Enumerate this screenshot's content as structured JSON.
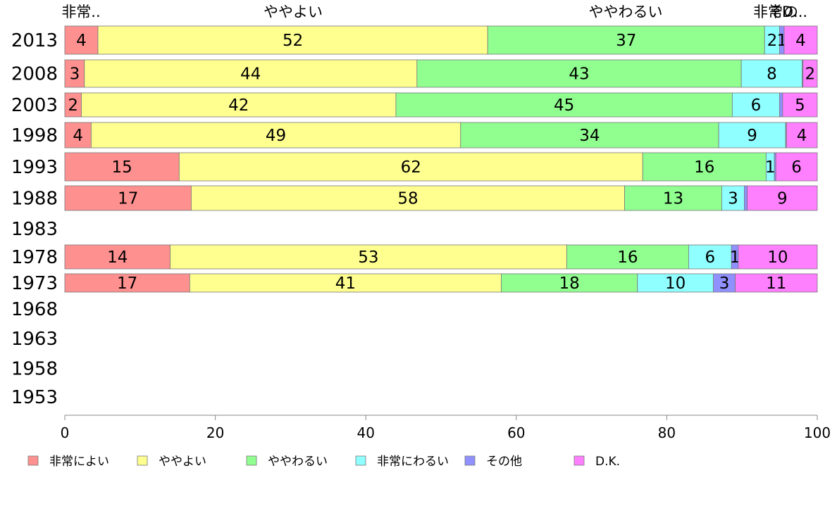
{
  "chart_data": {
    "type": "bar",
    "orientation": "horizontal",
    "stacked": true,
    "categories": [
      "2013",
      "2008",
      "2003",
      "1998",
      "1993",
      "1988",
      "1983",
      "1978",
      "1973",
      "1968",
      "1963",
      "1958",
      "1953"
    ],
    "series": [
      {
        "name": "非常によい",
        "color": "#ff9090",
        "values": [
          4.4,
          2.6,
          2.2,
          3.5,
          15.2,
          16.8,
          null,
          14.0,
          16.6,
          null,
          null,
          null,
          null
        ],
        "labels": [
          "4",
          "3",
          "2",
          "4",
          "15",
          "17",
          "",
          "14",
          "17",
          "",
          "",
          "",
          ""
        ]
      },
      {
        "name": "ややよい",
        "color": "#ffff90",
        "values": [
          51.8,
          44.2,
          41.8,
          49.1,
          61.6,
          57.6,
          null,
          52.7,
          41.4,
          null,
          null,
          null,
          null
        ],
        "labels": [
          "52",
          "44",
          "42",
          "49",
          "62",
          "58",
          "",
          "53",
          "41",
          "",
          "",
          "",
          ""
        ]
      },
      {
        "name": "ややわるい",
        "color": "#90ff90",
        "values": [
          36.8,
          43.1,
          44.7,
          34.3,
          16.4,
          12.9,
          null,
          16.2,
          18.1,
          null,
          null,
          null,
          null
        ],
        "labels": [
          "37",
          "43",
          "45",
          "34",
          "16",
          "13",
          "",
          "16",
          "18",
          "",
          "",
          "",
          ""
        ]
      },
      {
        "name": "非常にわるい",
        "color": "#90ffff",
        "values": [
          2.0,
          8.1,
          6.3,
          8.9,
          1.1,
          3.0,
          null,
          5.7,
          10.1,
          null,
          null,
          null,
          null
        ],
        "labels": [
          "2",
          "8",
          "6",
          "9",
          "1",
          "3",
          "",
          "6",
          "10",
          "",
          "",
          "",
          ""
        ]
      },
      {
        "name": "その他",
        "color": "#9090ff",
        "values": [
          0.6,
          0.1,
          0.4,
          0.1,
          0.2,
          0.4,
          null,
          0.9,
          2.9,
          null,
          null,
          null,
          null
        ],
        "labels": [
          "1",
          "",
          "",
          "",
          "",
          "",
          "",
          "1",
          "3",
          "",
          "",
          "",
          ""
        ]
      },
      {
        "name": "D.K.",
        "color": "#ff80ff",
        "values": [
          4.4,
          1.9,
          4.6,
          4.1,
          5.5,
          9.3,
          null,
          10.5,
          10.9,
          null,
          null,
          null,
          null
        ],
        "labels": [
          "4",
          "2",
          "5",
          "4",
          "6",
          "9",
          "",
          "10",
          "11",
          "",
          "",
          "",
          ""
        ]
      }
    ],
    "top_labels": [
      "非常..",
      "ややよい",
      "ややわるい",
      "非常",
      "その",
      "D..."
    ],
    "xlim": [
      0,
      100
    ],
    "xticks": [
      "0",
      "20",
      "40",
      "60",
      "80",
      "100"
    ],
    "grid": false,
    "legend_position": "bottom"
  }
}
